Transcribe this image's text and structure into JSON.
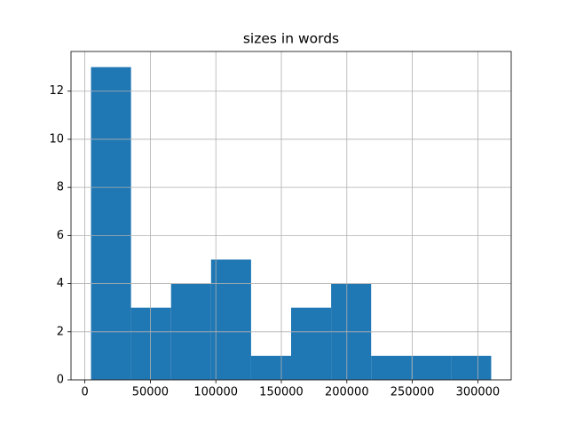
{
  "chart_data": {
    "type": "histogram",
    "title": "sizes in words",
    "bins": [
      4700,
      35250,
      65800,
      96350,
      126900,
      157450,
      188000,
      218550,
      249100,
      279650,
      310200
    ],
    "values": [
      13,
      3,
      4,
      5,
      1,
      3,
      4,
      1,
      1,
      1
    ],
    "color": "#1f77b4",
    "xlim": [
      -10575,
      325475
    ],
    "xticks": [
      0,
      50000,
      100000,
      150000,
      200000,
      250000,
      300000
    ],
    "ylim": [
      0,
      13.65
    ],
    "yticks": [
      0,
      2,
      4,
      6,
      8,
      10,
      12
    ],
    "grid": true
  }
}
